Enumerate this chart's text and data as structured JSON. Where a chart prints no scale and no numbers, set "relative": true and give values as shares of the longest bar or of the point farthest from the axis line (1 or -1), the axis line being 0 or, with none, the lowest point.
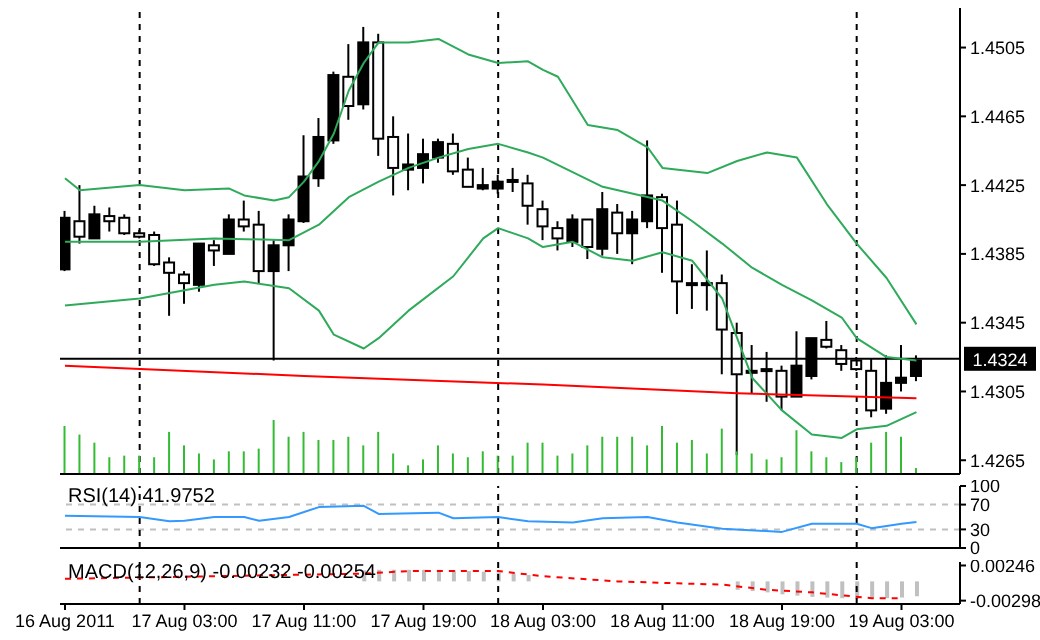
{
  "chart_data": [
    {
      "type": "candlestick",
      "tick_labels": "y",
      "xlim": [
        "2011-08-16T18:40",
        "2011-08-19T06:55"
      ],
      "ylim": [
        1.4257,
        1.4528
      ],
      "yticks": [
        1.4265,
        1.4305,
        1.4345,
        1.4385,
        1.4425,
        1.4465,
        1.4505
      ],
      "x": [
        "2011-08-16T19:00",
        "2011-08-16T20:00",
        "2011-08-16T21:00",
        "2011-08-16T22:00",
        "2011-08-16T23:00",
        "2011-08-17T00:00",
        "2011-08-17T01:00",
        "2011-08-17T02:00",
        "2011-08-17T03:00",
        "2011-08-17T04:00",
        "2011-08-17T05:00",
        "2011-08-17T06:00",
        "2011-08-17T07:00",
        "2011-08-17T08:00",
        "2011-08-17T09:00",
        "2011-08-17T10:00",
        "2011-08-17T11:00",
        "2011-08-17T12:00",
        "2011-08-17T13:00",
        "2011-08-17T14:00",
        "2011-08-17T15:00",
        "2011-08-17T16:00",
        "2011-08-17T17:00",
        "2011-08-17T18:00",
        "2011-08-17T19:00",
        "2011-08-17T20:00",
        "2011-08-17T21:00",
        "2011-08-17T22:00",
        "2011-08-17T23:00",
        "2011-08-18T00:00",
        "2011-08-18T01:00",
        "2011-08-18T02:00",
        "2011-08-18T03:00",
        "2011-08-18T04:00",
        "2011-08-18T05:00",
        "2011-08-18T06:00",
        "2011-08-18T07:00",
        "2011-08-18T08:00",
        "2011-08-18T09:00",
        "2011-08-18T10:00",
        "2011-08-18T11:00",
        "2011-08-18T12:00",
        "2011-08-18T13:00",
        "2011-08-18T14:00",
        "2011-08-18T15:00",
        "2011-08-18T16:00",
        "2011-08-18T17:00",
        "2011-08-18T18:00",
        "2011-08-18T19:00",
        "2011-08-18T20:00",
        "2011-08-18T21:00",
        "2011-08-18T22:00",
        "2011-08-18T23:00",
        "2011-08-19T00:00",
        "2011-08-19T01:00",
        "2011-08-19T02:00",
        "2011-08-19T03:00",
        "2011-08-19T04:00"
      ],
      "ohlc": [
        [
          1.4406,
          1.441,
          1.4375,
          1.4376
        ],
        [
          1.4395,
          1.4425,
          1.4391,
          1.4404
        ],
        [
          1.4408,
          1.4413,
          1.4394,
          1.4394
        ],
        [
          1.4404,
          1.4412,
          1.4398,
          1.4407
        ],
        [
          1.4397,
          1.4408,
          1.4396,
          1.4406
        ],
        [
          1.4395,
          1.4399,
          1.4394,
          1.4397
        ],
        [
          1.4379,
          1.4398,
          1.4378,
          1.4396
        ],
        [
          1.4374,
          1.4383,
          1.4349,
          1.438
        ],
        [
          1.4368,
          1.4375,
          1.4356,
          1.4373
        ],
        [
          1.4391,
          1.4391,
          1.4363,
          1.4367
        ],
        [
          1.4387,
          1.4393,
          1.4378,
          1.439
        ],
        [
          1.4405,
          1.4408,
          1.4385,
          1.4385
        ],
        [
          1.4401,
          1.4416,
          1.4398,
          1.4405
        ],
        [
          1.4375,
          1.441,
          1.4368,
          1.4402
        ],
        [
          1.439,
          1.4393,
          1.4323,
          1.4375
        ],
        [
          1.4405,
          1.4408,
          1.4375,
          1.439
        ],
        [
          1.443,
          1.4454,
          1.4403,
          1.4404
        ],
        [
          1.4453,
          1.4464,
          1.4424,
          1.4429
        ],
        [
          1.4489,
          1.4491,
          1.4449,
          1.4451
        ],
        [
          1.4471,
          1.4507,
          1.4463,
          1.4488
        ],
        [
          1.4508,
          1.4517,
          1.4469,
          1.4472
        ],
        [
          1.4452,
          1.4513,
          1.4442,
          1.4508
        ],
        [
          1.4435,
          1.4465,
          1.4419,
          1.4453
        ],
        [
          1.4437,
          1.4455,
          1.4422,
          1.4434
        ],
        [
          1.4443,
          1.4452,
          1.4426,
          1.4435
        ],
        [
          1.445,
          1.4452,
          1.4438,
          1.4441
        ],
        [
          1.4433,
          1.4455,
          1.4431,
          1.4449
        ],
        [
          1.4424,
          1.4441,
          1.4424,
          1.4434
        ],
        [
          1.4425,
          1.4435,
          1.4422,
          1.4423
        ],
        [
          1.4427,
          1.4431,
          1.442,
          1.4423
        ],
        [
          1.4427,
          1.4435,
          1.4421,
          1.4428
        ],
        [
          1.4413,
          1.4431,
          1.4402,
          1.4426
        ],
        [
          1.4401,
          1.4416,
          1.4393,
          1.4411
        ],
        [
          1.4394,
          1.4404,
          1.4387,
          1.44
        ],
        [
          1.4405,
          1.4408,
          1.4389,
          1.4392
        ],
        [
          1.4389,
          1.4405,
          1.4382,
          1.4405
        ],
        [
          1.4411,
          1.4421,
          1.4384,
          1.4388
        ],
        [
          1.4397,
          1.4414,
          1.4385,
          1.4409
        ],
        [
          1.4405,
          1.441,
          1.4379,
          1.4397
        ],
        [
          1.4419,
          1.4451,
          1.44,
          1.4404
        ],
        [
          1.44,
          1.442,
          1.4374,
          1.4418
        ],
        [
          1.4369,
          1.4416,
          1.435,
          1.4402
        ],
        [
          1.4368,
          1.4379,
          1.4353,
          1.4368
        ],
        [
          1.4368,
          1.4387,
          1.4352,
          1.4367
        ],
        [
          1.4341,
          1.4373,
          1.4315,
          1.4368
        ],
        [
          1.4315,
          1.4345,
          1.4268,
          1.4339
        ],
        [
          1.4317,
          1.4332,
          1.4304,
          1.4316
        ],
        [
          1.4318,
          1.4328,
          1.4299,
          1.4317
        ],
        [
          1.4302,
          1.432,
          1.4294,
          1.4317
        ],
        [
          1.432,
          1.434,
          1.4302,
          1.4302
        ],
        [
          1.4336,
          1.4336,
          1.4312,
          1.4314
        ],
        [
          1.4331,
          1.4346,
          1.433,
          1.4335
        ],
        [
          1.4321,
          1.4332,
          1.4317,
          1.4329
        ],
        [
          1.4318,
          1.4325,
          1.4317,
          1.4323
        ],
        [
          1.4294,
          1.4324,
          1.429,
          1.4317
        ],
        [
          1.431,
          1.4326,
          1.4292,
          1.4295
        ],
        [
          1.4313,
          1.4332,
          1.4305,
          1.431
        ],
        [
          1.4323,
          1.4326,
          1.4311,
          1.4314
        ]
      ],
      "series": [
        {
          "type": "line",
          "color": "#2eaa5a",
          "x": [
            "2011-08-16T19:00",
            "2011-08-16T20:00",
            "2011-08-17T00:00",
            "2011-08-17T03:00",
            "2011-08-17T06:00",
            "2011-08-17T07:00",
            "2011-08-17T09:00",
            "2011-08-17T10:00",
            "2011-08-17T11:00",
            "2011-08-17T12:00",
            "2011-08-17T13:00",
            "2011-08-17T14:00",
            "2011-08-17T15:00",
            "2011-08-17T16:00",
            "2011-08-17T18:00",
            "2011-08-17T20:00",
            "2011-08-17T22:00",
            "2011-08-18T00:00",
            "2011-08-18T02:00",
            "2011-08-18T03:00",
            "2011-08-18T04:00",
            "2011-08-18T06:00",
            "2011-08-18T08:00",
            "2011-08-18T10:00",
            "2011-08-18T11:00",
            "2011-08-18T14:00",
            "2011-08-18T16:00",
            "2011-08-18T18:00",
            "2011-08-18T20:00",
            "2011-08-18T22:00",
            "2011-08-19T00:00",
            "2011-08-19T02:00",
            "2011-08-19T04:00"
          ],
          "values": [
            1.4429,
            1.4422,
            1.4425,
            1.4422,
            1.4423,
            1.4419,
            1.4416,
            1.4418,
            1.4427,
            1.4439,
            1.4455,
            1.448,
            1.4496,
            1.4508,
            1.4508,
            1.451,
            1.4501,
            1.4496,
            1.4497,
            1.4492,
            1.4488,
            1.446,
            1.4457,
            1.4447,
            1.4435,
            1.4432,
            1.4439,
            1.4444,
            1.4441,
            1.4414,
            1.4391,
            1.4371,
            1.4344
          ]
        },
        {
          "type": "line",
          "color": "#2eaa5a",
          "x": [
            "2011-08-16T19:00",
            "2011-08-17T00:00",
            "2011-08-17T05:00",
            "2011-08-17T10:00",
            "2011-08-17T12:00",
            "2011-08-17T14:00",
            "2011-08-17T16:00",
            "2011-08-17T18:00",
            "2011-08-17T20:00",
            "2011-08-17T22:00",
            "2011-08-18T00:00",
            "2011-08-18T02:00",
            "2011-08-18T03:00",
            "2011-08-18T07:00",
            "2011-08-18T11:00",
            "2011-08-18T13:00",
            "2011-08-18T15:00",
            "2011-08-18T17:00",
            "2011-08-18T19:00",
            "2011-08-18T21:00",
            "2011-08-18T23:00",
            "2011-08-19T00:00",
            "2011-08-19T02:00",
            "2011-08-19T04:00"
          ],
          "values": [
            1.4392,
            1.4392,
            1.4394,
            1.4393,
            1.4402,
            1.4418,
            1.4427,
            1.4435,
            1.4441,
            1.4446,
            1.4449,
            1.4444,
            1.4441,
            1.4424,
            1.4416,
            1.4404,
            1.4391,
            1.4377,
            1.4367,
            1.4358,
            1.4348,
            1.4336,
            1.4325,
            1.4323
          ]
        },
        {
          "type": "line",
          "color": "#2eaa5a",
          "x": [
            "2011-08-16T19:00",
            "2011-08-17T00:00",
            "2011-08-17T05:00",
            "2011-08-17T07:00",
            "2011-08-17T10:00",
            "2011-08-17T12:00",
            "2011-08-17T13:00",
            "2011-08-17T15:00",
            "2011-08-17T16:00",
            "2011-08-17T18:00",
            "2011-08-17T21:00",
            "2011-08-17T23:00",
            "2011-08-18T00:00",
            "2011-08-18T02:00",
            "2011-08-18T03:00",
            "2011-08-18T05:00",
            "2011-08-18T07:00",
            "2011-08-18T09:00",
            "2011-08-18T11:00",
            "2011-08-18T13:00",
            "2011-08-18T15:00",
            "2011-08-18T17:00",
            "2011-08-18T19:00",
            "2011-08-18T21:00",
            "2011-08-18T23:00",
            "2011-08-19T00:00",
            "2011-08-19T02:00",
            "2011-08-19T04:00"
          ],
          "values": [
            1.4355,
            1.4359,
            1.4367,
            1.4369,
            1.4365,
            1.4352,
            1.4338,
            1.433,
            1.4336,
            1.4352,
            1.4372,
            1.4394,
            1.44,
            1.4394,
            1.4389,
            1.4392,
            1.4383,
            1.4381,
            1.4386,
            1.4381,
            1.4359,
            1.4313,
            1.4294,
            1.428,
            1.4278,
            1.4283,
            1.4285,
            1.4293
          ]
        },
        {
          "type": "line",
          "color": "#ff0000",
          "x": [
            "2011-08-16T19:00",
            "2011-08-17T11:00",
            "2011-08-18T03:00",
            "2011-08-18T16:00",
            "2011-08-19T04:00"
          ],
          "values": [
            1.432,
            1.4314,
            1.4309,
            1.4304,
            1.4301
          ]
        }
      ],
      "ref_lines": [
        {
          "axis": "y",
          "value": 1.4324,
          "label": "1.4324",
          "color": "#000000"
        },
        {
          "axis": "x",
          "value": "2011-08-17T00:00",
          "color": "#000000",
          "line_style": "dashed"
        },
        {
          "axis": "x",
          "value": "2011-08-18T00:00",
          "color": "#000000",
          "line_style": "dashed"
        },
        {
          "axis": "x",
          "value": "2011-08-19T00:00",
          "color": "#000000",
          "line_style": "dashed"
        }
      ]
    },
    {
      "type": "bar",
      "relative": true,
      "tick_labels": false,
      "color": "#33bb33",
      "xlim": [
        "2011-08-16T18:40",
        "2011-08-19T06:55"
      ],
      "x": [
        "2011-08-16T19:00",
        "2011-08-16T20:00",
        "2011-08-16T21:00",
        "2011-08-16T22:00",
        "2011-08-16T23:00",
        "2011-08-17T00:00",
        "2011-08-17T01:00",
        "2011-08-17T02:00",
        "2011-08-17T03:00",
        "2011-08-17T04:00",
        "2011-08-17T05:00",
        "2011-08-17T06:00",
        "2011-08-17T07:00",
        "2011-08-17T08:00",
        "2011-08-17T09:00",
        "2011-08-17T10:00",
        "2011-08-17T11:00",
        "2011-08-17T12:00",
        "2011-08-17T13:00",
        "2011-08-17T14:00",
        "2011-08-17T15:00",
        "2011-08-17T16:00",
        "2011-08-17T17:00",
        "2011-08-17T18:00",
        "2011-08-17T19:00",
        "2011-08-17T20:00",
        "2011-08-17T21:00",
        "2011-08-17T22:00",
        "2011-08-17T23:00",
        "2011-08-18T00:00",
        "2011-08-18T01:00",
        "2011-08-18T02:00",
        "2011-08-18T03:00",
        "2011-08-18T04:00",
        "2011-08-18T05:00",
        "2011-08-18T06:00",
        "2011-08-18T07:00",
        "2011-08-18T08:00",
        "2011-08-18T09:00",
        "2011-08-18T10:00",
        "2011-08-18T11:00",
        "2011-08-18T12:00",
        "2011-08-18T13:00",
        "2011-08-18T14:00",
        "2011-08-18T15:00",
        "2011-08-18T16:00",
        "2011-08-18T17:00",
        "2011-08-18T18:00",
        "2011-08-18T19:00",
        "2011-08-18T20:00",
        "2011-08-18T21:00",
        "2011-08-18T22:00",
        "2011-08-18T23:00",
        "2011-08-19T00:00",
        "2011-08-19T01:00",
        "2011-08-19T02:00",
        "2011-08-19T03:00",
        "2011-08-19T04:00"
      ],
      "values": [
        0.89,
        0.73,
        0.58,
        0.31,
        0.34,
        0.34,
        0.31,
        0.78,
        0.53,
        0.38,
        0.27,
        0.42,
        0.42,
        0.47,
        1,
        0.69,
        0.78,
        0.63,
        0.63,
        0.69,
        0.53,
        0.78,
        0.38,
        0.16,
        0.27,
        0.53,
        0.38,
        0.31,
        0.42,
        0.34,
        0.34,
        0.58,
        0.58,
        0.34,
        0.38,
        0.53,
        0.69,
        0.69,
        0.69,
        0.53,
        0.89,
        0.58,
        0.63,
        0.38,
        0.84,
        0.42,
        0.38,
        0.27,
        0.31,
        0.81,
        0.42,
        0.31,
        0.22,
        0.31,
        0.58,
        0.78,
        0.69,
        0.11
      ]
    },
    {
      "type": "line",
      "title": "RSI(14) 41.9752",
      "tick_labels": "y",
      "xlim": [
        "2011-08-16T18:40",
        "2011-08-19T06:55"
      ],
      "ylim": [
        0,
        100
      ],
      "yticks": [
        0,
        30,
        70,
        100
      ],
      "series": [
        {
          "color": "#3399ff",
          "x": [
            "2011-08-16T19:00",
            "2011-08-17T00:00",
            "2011-08-17T02:00",
            "2011-08-17T03:00",
            "2011-08-17T05:00",
            "2011-08-17T07:00",
            "2011-08-17T08:00",
            "2011-08-17T10:00",
            "2011-08-17T12:00",
            "2011-08-17T15:00",
            "2011-08-17T16:00",
            "2011-08-17T20:00",
            "2011-08-17T21:00",
            "2011-08-18T00:00",
            "2011-08-18T02:00",
            "2011-08-18T05:00",
            "2011-08-18T07:00",
            "2011-08-18T10:00",
            "2011-08-18T12:00",
            "2011-08-18T15:00",
            "2011-08-18T19:00",
            "2011-08-18T21:00",
            "2011-08-19T00:00",
            "2011-08-19T01:00",
            "2011-08-19T03:00",
            "2011-08-19T04:00"
          ],
          "values": [
            52,
            50,
            43,
            44,
            50,
            50,
            44,
            50,
            66,
            68,
            55,
            57,
            48,
            50,
            43,
            41,
            48,
            50,
            41,
            31,
            26,
            39,
            39,
            32,
            39,
            42
          ]
        }
      ],
      "ref_lines": [
        {
          "axis": "y",
          "value": 30,
          "color": "#c0c0c0",
          "line_style": "dashed"
        },
        {
          "axis": "y",
          "value": 70,
          "color": "#c0c0c0",
          "line_style": "dashed"
        },
        {
          "axis": "x",
          "value": "2011-08-17T00:00",
          "color": "#000000",
          "line_style": "dashed"
        },
        {
          "axis": "x",
          "value": "2011-08-18T00:00",
          "color": "#000000",
          "line_style": "dashed"
        },
        {
          "axis": "x",
          "value": "2011-08-19T00:00",
          "color": "#000000",
          "line_style": "dashed"
        }
      ]
    },
    {
      "type": "bar",
      "title": "MACD(12,26,9) -0.00232 -0.00254",
      "xlim": [
        "2011-08-16T18:40",
        "2011-08-19T06:55"
      ],
      "ylim": [
        -0.0035,
        0.003
      ],
      "yticks": [
        -0.00298,
        0.00246
      ],
      "xticks": [
        {
          "value": "2011-08-16T19:00",
          "label": "16 Aug 2011"
        },
        {
          "value": "2011-08-17T03:00",
          "label": "17 Aug 03:00"
        },
        {
          "value": "2011-08-17T11:00",
          "label": "17 Aug 11:00"
        },
        {
          "value": "2011-08-17T19:00",
          "label": "17 Aug 19:00"
        },
        {
          "value": "2011-08-18T03:00",
          "label": "18 Aug 03:00"
        },
        {
          "value": "2011-08-18T11:00",
          "label": "18 Aug 11:00"
        },
        {
          "value": "2011-08-18T19:00",
          "label": "18 Aug 19:00"
        },
        {
          "value": "2011-08-19T03:00",
          "label": "19 Aug 03:00"
        }
      ],
      "series": [
        {
          "type": "bar",
          "color": "#c0c0c0",
          "x": [
            "2011-08-17T15:00",
            "2011-08-17T16:00",
            "2011-08-17T17:00",
            "2011-08-17T18:00",
            "2011-08-17T19:00",
            "2011-08-17T20:00",
            "2011-08-17T21:00",
            "2011-08-17T22:00",
            "2011-08-17T23:00",
            "2011-08-18T00:00",
            "2011-08-18T01:00",
            "2011-08-18T02:00",
            "2011-08-18T16:00",
            "2011-08-18T17:00",
            "2011-08-18T18:00",
            "2011-08-18T19:00",
            "2011-08-18T20:00",
            "2011-08-18T21:00",
            "2011-08-18T22:00",
            "2011-08-18T23:00",
            "2011-08-19T00:00",
            "2011-08-19T01:00",
            "2011-08-19T02:00",
            "2011-08-19T03:00",
            "2011-08-19T04:00"
          ],
          "values": [
            0.0017,
            0.0018,
            0.0018,
            0.0018,
            0.0018,
            0.0018,
            0.0017,
            0.0016,
            0.0015,
            0.0014,
            0.0012,
            0.001,
            -0.0013,
            -0.0015,
            -0.0017,
            -0.002,
            -0.0022,
            -0.0024,
            -0.0025,
            -0.0026,
            -0.0027,
            -0.0027,
            -0.0026,
            -0.0025,
            -0.0023
          ]
        },
        {
          "type": "line",
          "color": "#ff0000",
          "line_style": "dashed",
          "x": [
            "2011-08-16T19:00",
            "2011-08-17T15:00",
            "2011-08-17T18:00",
            "2011-08-18T00:00",
            "2011-08-18T03:00",
            "2011-08-18T08:00",
            "2011-08-18T12:00",
            "2011-08-18T15:00",
            "2011-08-18T18:00",
            "2011-08-18T21:00",
            "2011-08-19T01:00",
            "2011-08-19T03:00"
          ],
          "values": [
            0.0004,
            0.0012,
            0.0016,
            0.0016,
            0.0008,
            0,
            -0.0003,
            -0.0005,
            -0.0013,
            -0.0017,
            -0.0026,
            -0.0026
          ]
        }
      ],
      "ref_lines": [
        {
          "axis": "x",
          "value": "2011-08-17T00:00",
          "color": "#000000",
          "line_style": "dashed"
        },
        {
          "axis": "x",
          "value": "2011-08-18T00:00",
          "color": "#000000",
          "line_style": "dashed"
        },
        {
          "axis": "x",
          "value": "2011-08-19T00:00",
          "color": "#000000",
          "line_style": "dashed"
        }
      ]
    }
  ]
}
